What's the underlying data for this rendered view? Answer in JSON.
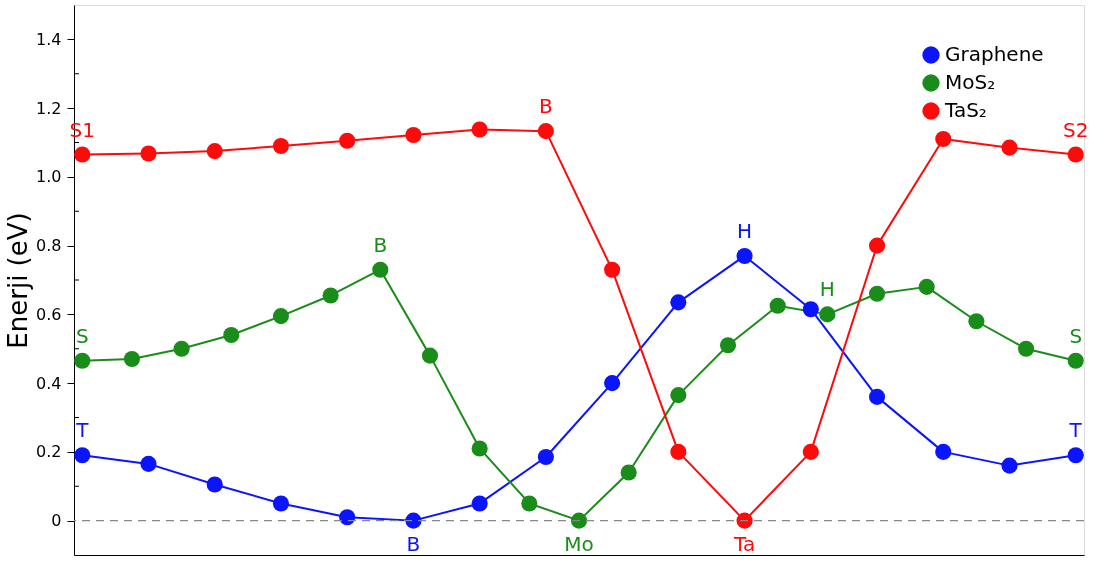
{
  "chart_data": {
    "type": "line",
    "ylabel": "Enerji (eV)",
    "categories": [
      null,
      null,
      null,
      null,
      null,
      null,
      null,
      null,
      null,
      null,
      null,
      null,
      null,
      null,
      null,
      null,
      null,
      null,
      null,
      null,
      null,
      null,
      null,
      null,
      null,
      null,
      null,
      null,
      null,
      null,
      null,
      null,
      null,
      null,
      null,
      null,
      null,
      null,
      null,
      null,
      null,
      null,
      null,
      null,
      null,
      null,
      null,
      null,
      null,
      null,
      null,
      null,
      null,
      null,
      null,
      null,
      null,
      null,
      null,
      null,
      null
    ],
    "ylim": [
      -0.1,
      1.5
    ],
    "yticks": [
      0,
      {
        "value": 0.1,
        "label": null
      },
      0.2,
      {
        "value": 0.3,
        "label": null
      },
      0.4,
      {
        "value": 0.5,
        "label": null
      },
      0.6,
      {
        "value": 0.7,
        "label": null
      },
      0.8,
      {
        "value": 0.9,
        "label": null
      },
      {
        "value": 1.0,
        "label": "1.0"
      },
      {
        "value": 1.1,
        "label": null
      },
      1.2,
      {
        "value": 1.3,
        "label": null
      },
      1.4
    ],
    "tick_labels": "y",
    "marker": "circle",
    "line_style": "solid",
    "legend": "top right",
    "grid": false,
    "series": [
      {
        "name": "Graphene",
        "color": "#0a14ff",
        "values": [
          0.19,
          null,
          null,
          null,
          0.165,
          null,
          null,
          null,
          0.105,
          null,
          null,
          null,
          0.05,
          null,
          null,
          null,
          0.01,
          null,
          null,
          null,
          0.0,
          null,
          null,
          null,
          0.05,
          null,
          null,
          null,
          0.185,
          null,
          null,
          null,
          0.4,
          null,
          null,
          null,
          0.635,
          null,
          null,
          null,
          0.77,
          null,
          null,
          null,
          0.615,
          null,
          null,
          null,
          0.36,
          null,
          null,
          null,
          0.2,
          null,
          null,
          null,
          0.16,
          null,
          null,
          null,
          0.19
        ],
        "value_labels": [
          "T",
          null,
          null,
          null,
          null,
          null,
          null,
          null,
          null,
          null,
          null,
          null,
          null,
          null,
          null,
          null,
          null,
          null,
          null,
          null,
          "B",
          null,
          null,
          null,
          null,
          null,
          null,
          null,
          null,
          null,
          null,
          null,
          null,
          null,
          null,
          null,
          null,
          null,
          null,
          null,
          "H",
          null,
          null,
          null,
          null,
          null,
          null,
          null,
          null,
          null,
          null,
          null,
          null,
          null,
          null,
          null,
          null,
          null,
          null,
          null,
          "T"
        ]
      },
      {
        "name": "MoS₂",
        "color": "#1a8c1a",
        "values": [
          0.465,
          null,
          null,
          0.47,
          null,
          null,
          0.5,
          null,
          null,
          0.54,
          null,
          null,
          0.595,
          null,
          null,
          0.655,
          null,
          null,
          0.73,
          null,
          null,
          0.48,
          null,
          null,
          0.21,
          null,
          null,
          0.05,
          null,
          null,
          0.0,
          null,
          null,
          0.14,
          null,
          null,
          0.365,
          null,
          null,
          0.51,
          null,
          null,
          0.625,
          null,
          null,
          0.6,
          null,
          null,
          0.66,
          null,
          null,
          0.68,
          null,
          null,
          0.58,
          null,
          null,
          0.5,
          null,
          null,
          0.465
        ],
        "value_labels": [
          "S",
          null,
          null,
          null,
          null,
          null,
          null,
          null,
          null,
          null,
          null,
          null,
          null,
          null,
          null,
          null,
          null,
          null,
          "B",
          null,
          null,
          null,
          null,
          null,
          null,
          null,
          null,
          null,
          null,
          null,
          "Mo",
          null,
          null,
          null,
          null,
          null,
          null,
          null,
          null,
          null,
          null,
          null,
          null,
          null,
          null,
          "H",
          null,
          null,
          null,
          null,
          null,
          null,
          null,
          null,
          null,
          null,
          null,
          null,
          null,
          null,
          "S"
        ]
      },
      {
        "name": "TaS₂",
        "color": "#ff0a0a",
        "values": [
          1.065,
          null,
          null,
          null,
          1.068,
          null,
          null,
          null,
          1.075,
          null,
          null,
          null,
          1.09,
          null,
          null,
          null,
          1.105,
          null,
          null,
          null,
          1.122,
          null,
          null,
          null,
          1.138,
          null,
          null,
          null,
          1.133,
          null,
          null,
          null,
          0.73,
          null,
          null,
          null,
          0.2,
          null,
          null,
          null,
          0.0,
          null,
          null,
          null,
          0.2,
          null,
          null,
          null,
          0.8,
          null,
          null,
          null,
          1.11,
          null,
          null,
          null,
          1.085,
          null,
          null,
          null,
          1.065
        ],
        "value_labels": [
          "S1",
          null,
          null,
          null,
          null,
          null,
          null,
          null,
          null,
          null,
          null,
          null,
          null,
          null,
          null,
          null,
          null,
          null,
          null,
          null,
          null,
          null,
          null,
          null,
          null,
          null,
          null,
          null,
          "B",
          null,
          null,
          null,
          null,
          null,
          null,
          null,
          null,
          null,
          null,
          null,
          "Ta",
          null,
          null,
          null,
          null,
          null,
          null,
          null,
          null,
          null,
          null,
          null,
          null,
          null,
          null,
          null,
          null,
          null,
          null,
          null,
          "S2"
        ]
      }
    ],
    "ref_lines": [
      {
        "axis": "y",
        "value": 0,
        "color": "#888888",
        "line_style": "dashed"
      }
    ]
  }
}
